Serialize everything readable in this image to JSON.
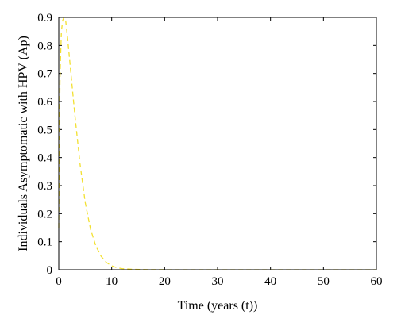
{
  "chart_data": {
    "type": "line",
    "title": "",
    "xlabel": "Time (years (t))",
    "ylabel": "Individuals Asymptomatic with HPV (Ap)",
    "xlim": [
      0,
      60
    ],
    "ylim": [
      0,
      0.9
    ],
    "xticks": [
      "0",
      "10",
      "20",
      "30",
      "40",
      "50",
      "60"
    ],
    "yticks": [
      "0",
      "0.1",
      "0.2",
      "0.3",
      "0.4",
      "0.5",
      "0.6",
      "0.7",
      "0.8",
      "0.9"
    ],
    "grid": false,
    "legend": "none",
    "series": [
      {
        "line_style": "dashed",
        "color": "#f2e030",
        "x": [
          0,
          0.1,
          0.25,
          0.5,
          0.75,
          1.0,
          1.3,
          1.7,
          2.2,
          3,
          4,
          5,
          6,
          7,
          8,
          9,
          10,
          11,
          12,
          14,
          16,
          18,
          20,
          25,
          30,
          40,
          50,
          60
        ],
        "y": [
          0.15,
          0.45,
          0.7,
          0.85,
          0.89,
          0.9,
          0.89,
          0.82,
          0.72,
          0.56,
          0.38,
          0.24,
          0.145,
          0.085,
          0.048,
          0.026,
          0.014,
          0.007,
          0.004,
          0.0015,
          0.0005,
          0.0002,
          0.0001,
          0,
          0,
          0,
          0,
          0
        ]
      }
    ]
  }
}
